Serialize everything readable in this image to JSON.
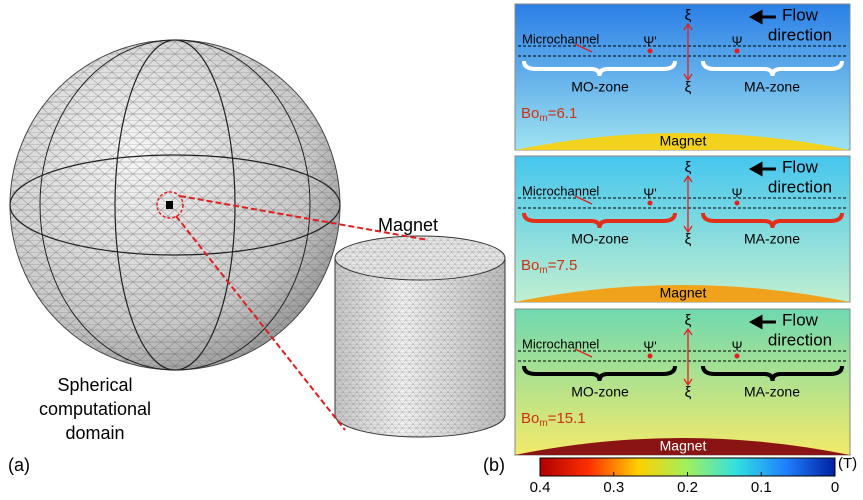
{
  "left": {
    "magnet_label": "Magnet",
    "domain_label": [
      "Spherical",
      "computational",
      "domain"
    ],
    "panel_label": "(a)"
  },
  "right": {
    "panel_label": "(b)",
    "panels": [
      {
        "microchannel": "Microchannel",
        "flow": [
          "Flow",
          "direction"
        ],
        "xi_top": "ξ",
        "xi_bottom": "ξ",
        "psi_prime": "Ψ'",
        "psi": "Ψ",
        "zones": [
          "MO-zone",
          "MA-zone"
        ],
        "bo": {
          "base": "Bo",
          "sub": "m",
          "rest": "=6.1"
        },
        "magnet": "Magnet",
        "background": [
          "#2a7fe6",
          "#9fe3f0"
        ],
        "brace_color": "#ffffff",
        "magnet_color": "#f2d21c"
      },
      {
        "microchannel": "Microchannel",
        "flow": [
          "Flow",
          "direction"
        ],
        "xi_top": "ξ",
        "xi_bottom": "ξ",
        "psi_prime": "Ψ'",
        "psi": "Ψ",
        "zones": [
          "MO-zone",
          "MA-zone"
        ],
        "bo": {
          "base": "Bo",
          "sub": "m",
          "rest": "=7.5"
        },
        "magnet": "Magnet",
        "background": [
          "#45c6ee",
          "#c0efd0"
        ],
        "brace_color": "#e0301a",
        "magnet_color": "#f0a21c"
      },
      {
        "microchannel": "Microchannel",
        "flow": [
          "Flow",
          "direction"
        ],
        "xi_top": "ξ",
        "xi_bottom": "ξ",
        "psi_prime": "Ψ'",
        "psi": "Ψ",
        "zones": [
          "MO-zone",
          "MA-zone"
        ],
        "bo": {
          "base": "Bo",
          "sub": "m",
          "rest": "=15.1"
        },
        "magnet": "Magnet",
        "background": [
          "#6fd9b0",
          "#f3ea6a"
        ],
        "brace_color": "#000000",
        "magnet_color": "#8a1414"
      }
    ],
    "colorbar": {
      "unit": "(T)",
      "lim": [
        0.4,
        0
      ],
      "ticks": [
        0.4,
        0.3,
        0.2,
        0.1,
        0
      ],
      "colors": [
        "#b00000",
        "#ff3000",
        "#ffd000",
        "#a0f060",
        "#30e0e0",
        "#2080ff",
        "#0020a0"
      ]
    }
  }
}
